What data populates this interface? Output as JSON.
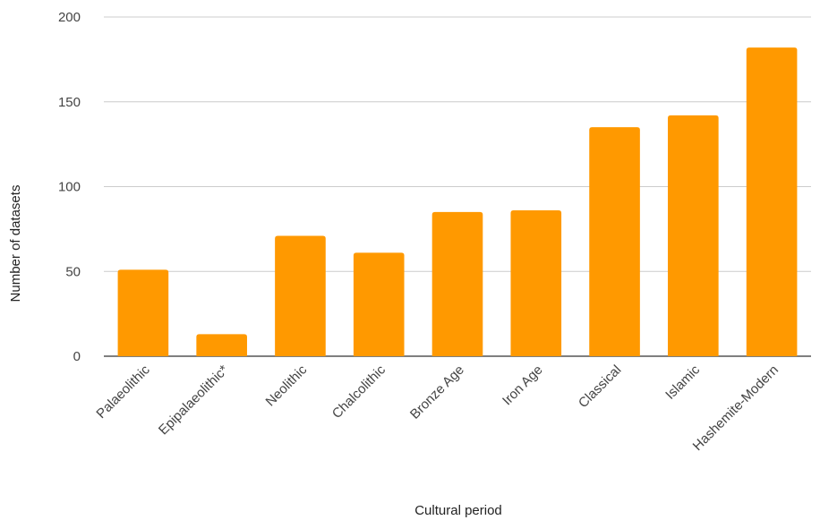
{
  "chart_data": {
    "type": "bar",
    "title": "",
    "xlabel": "Cultural period",
    "ylabel": "Number of datasets",
    "categories": [
      "Palaeolithic",
      "Epipalaeolithic*",
      "Neolithic",
      "Chalcolithic",
      "Bronze Age",
      "Iron Age",
      "Classical",
      "Islamic",
      "Hashemite-Modern"
    ],
    "values": [
      51,
      13,
      71,
      61,
      85,
      86,
      135,
      142,
      182
    ],
    "ylim": [
      0,
      200
    ],
    "yticks": [
      0,
      50,
      100,
      150,
      200
    ],
    "grid": true,
    "legend": "none",
    "bar_color": "#FF9900"
  }
}
